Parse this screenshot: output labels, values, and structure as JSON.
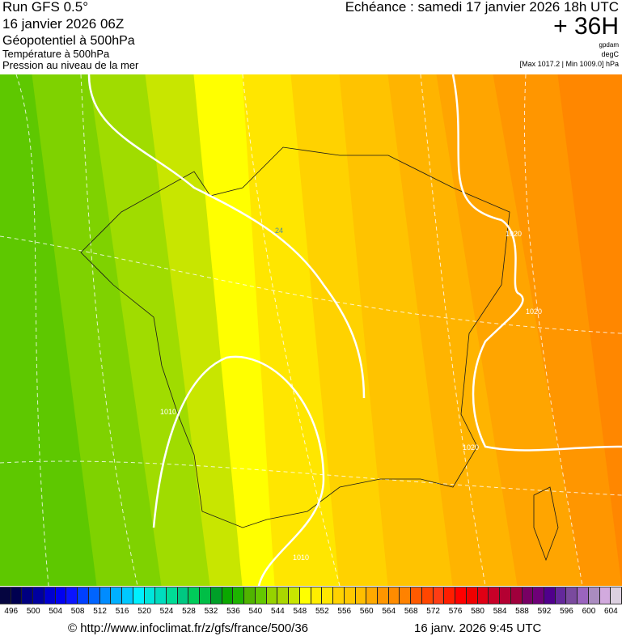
{
  "header": {
    "run": "Run GFS 0.5°",
    "run_date": "16 janvier 2026 06Z",
    "field1": "Géopotentiel à 500hPa",
    "field2": "Température à 500hPa",
    "field3": "Pression au niveau de la mer",
    "echeance": "Echéance : samedi 17 janvier 2026 18h UTC",
    "lead": "+ 36H",
    "unit1": "gpdam",
    "unit2": "degC",
    "pressure_range": "[Max 1017.2 | Min 1009.0] hPa"
  },
  "map": {
    "contour_labels": [
      "1010",
      "1010",
      "1020",
      "1020",
      "1020",
      "24"
    ],
    "band_colors": [
      "#5ec800",
      "#7fd200",
      "#a0dc00",
      "#c8e600",
      "#ffff00",
      "#ffe600",
      "#ffd200",
      "#ffc300",
      "#ffb400",
      "#ffa500",
      "#ff9600",
      "#ff8700"
    ]
  },
  "colorbar": {
    "labels": [
      "496",
      "500",
      "504",
      "508",
      "512",
      "516",
      "520",
      "524",
      "528",
      "532",
      "536",
      "540",
      "544",
      "548",
      "552",
      "556",
      "560",
      "564",
      "568",
      "572",
      "576",
      "580",
      "584",
      "588",
      "592",
      "596",
      "600",
      "604"
    ],
    "colors": [
      "#050540",
      "#000050",
      "#000080",
      "#0000a0",
      "#0000d0",
      "#0000f0",
      "#0a14ff",
      "#0040ff",
      "#0064ff",
      "#008cff",
      "#00b0ff",
      "#00c8ff",
      "#00f0ff",
      "#00e6dc",
      "#00dcbe",
      "#00dc96",
      "#00c882",
      "#00cc5a",
      "#00be46",
      "#00a028",
      "#0aa800",
      "#1eb400",
      "#50b400",
      "#64c800",
      "#96d200",
      "#aad700",
      "#c8e600",
      "#ffff00",
      "#ffee00",
      "#ffe600",
      "#ffd200",
      "#ffc800",
      "#ffbe00",
      "#ffaa00",
      "#ff9600",
      "#ff8c00",
      "#ff8200",
      "#ff5a00",
      "#ff4600",
      "#ff3c14",
      "#ff1e00",
      "#ff0000",
      "#f00000",
      "#e00014",
      "#c80028",
      "#b40032",
      "#a0003c",
      "#780064",
      "#6e0078",
      "#50008c",
      "#64289b",
      "#7a4a9e",
      "#9a64be",
      "#aa8cc0",
      "#d2aade",
      "#dcd0e0"
    ]
  },
  "footer": {
    "source": "© http://www.infoclimat.fr/z/gfs/france/500/36",
    "timestamp": "16 janv. 2026  9:45 UTC"
  }
}
